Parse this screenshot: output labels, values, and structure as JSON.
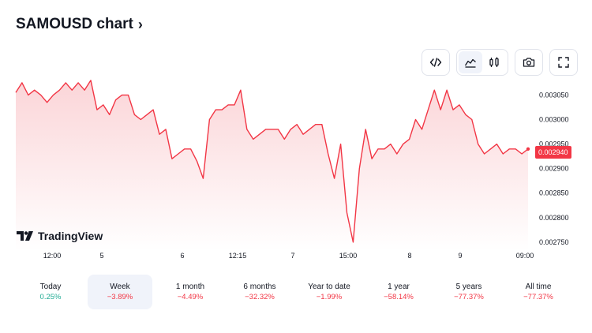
{
  "header": {
    "title": "SAMOUSD chart",
    "chevron": "›"
  },
  "toolbar": {
    "buttons": [
      {
        "name": "embed-icon"
      },
      {
        "name": "area-chart-icon",
        "active": true
      },
      {
        "name": "candles-icon"
      },
      {
        "name": "camera-icon"
      },
      {
        "name": "fullscreen-icon"
      }
    ]
  },
  "branding": {
    "logo_text": "TradingView"
  },
  "current_price": "0.002940",
  "colors": {
    "line": "#f23645",
    "fill_top": "#fbd5d8",
    "fill_bottom": "#ffffff",
    "grid": "#f0f3fa"
  },
  "chart_data": {
    "type": "area",
    "title": "SAMOUSD chart",
    "x_tick_labels": [
      "12:00",
      "5",
      "6",
      "12:15",
      "7",
      "15:00",
      "8",
      "9",
      "09:00"
    ],
    "y_tick_labels": [
      "0.003050",
      "0.003000",
      "0.002950",
      "0.002900",
      "0.002850",
      "0.002800",
      "0.002750"
    ],
    "ylim": [
      0.002745,
      0.00307
    ],
    "y_ticks": [
      0.00305,
      0.003,
      0.00295,
      0.0029,
      0.00285,
      0.0028,
      0.00275
    ],
    "grid": false,
    "current_value": 0.00294,
    "values": [
      0.003055,
      0.003075,
      0.00305,
      0.00306,
      0.00305,
      0.003035,
      0.00305,
      0.00306,
      0.003075,
      0.00306,
      0.003075,
      0.00306,
      0.00308,
      0.00302,
      0.00303,
      0.00301,
      0.00304,
      0.00305,
      0.00305,
      0.00301,
      0.003,
      0.00301,
      0.00302,
      0.00297,
      0.00298,
      0.00292,
      0.00293,
      0.00294,
      0.00294,
      0.002915,
      0.00288,
      0.003,
      0.00302,
      0.00302,
      0.00303,
      0.00303,
      0.00306,
      0.00298,
      0.00296,
      0.00297,
      0.00298,
      0.00298,
      0.00298,
      0.00296,
      0.00298,
      0.00299,
      0.00297,
      0.00298,
      0.00299,
      0.00299,
      0.00293,
      0.00288,
      0.00295,
      0.00281,
      0.00275,
      0.0029,
      0.00298,
      0.00292,
      0.00294,
      0.00294,
      0.00295,
      0.00293,
      0.00295,
      0.00296,
      0.003,
      0.00298,
      0.00302,
      0.00306,
      0.00302,
      0.00306,
      0.00302,
      0.00303,
      0.00301,
      0.003,
      0.00295,
      0.00293,
      0.00294,
      0.00295,
      0.00293,
      0.00294,
      0.00294,
      0.00293,
      0.00294
    ]
  },
  "ranges": [
    {
      "label": "Today",
      "change": "0.25%",
      "dir": "pos"
    },
    {
      "label": "Week",
      "change": "−3.89%",
      "dir": "neg",
      "active": true
    },
    {
      "label": "1 month",
      "change": "−4.49%",
      "dir": "neg"
    },
    {
      "label": "6 months",
      "change": "−32.32%",
      "dir": "neg"
    },
    {
      "label": "Year to date",
      "change": "−1.99%",
      "dir": "neg"
    },
    {
      "label": "1 year",
      "change": "−58.14%",
      "dir": "neg"
    },
    {
      "label": "5 years",
      "change": "−77.37%",
      "dir": "neg"
    },
    {
      "label": "All time",
      "change": "−77.37%",
      "dir": "neg"
    }
  ]
}
